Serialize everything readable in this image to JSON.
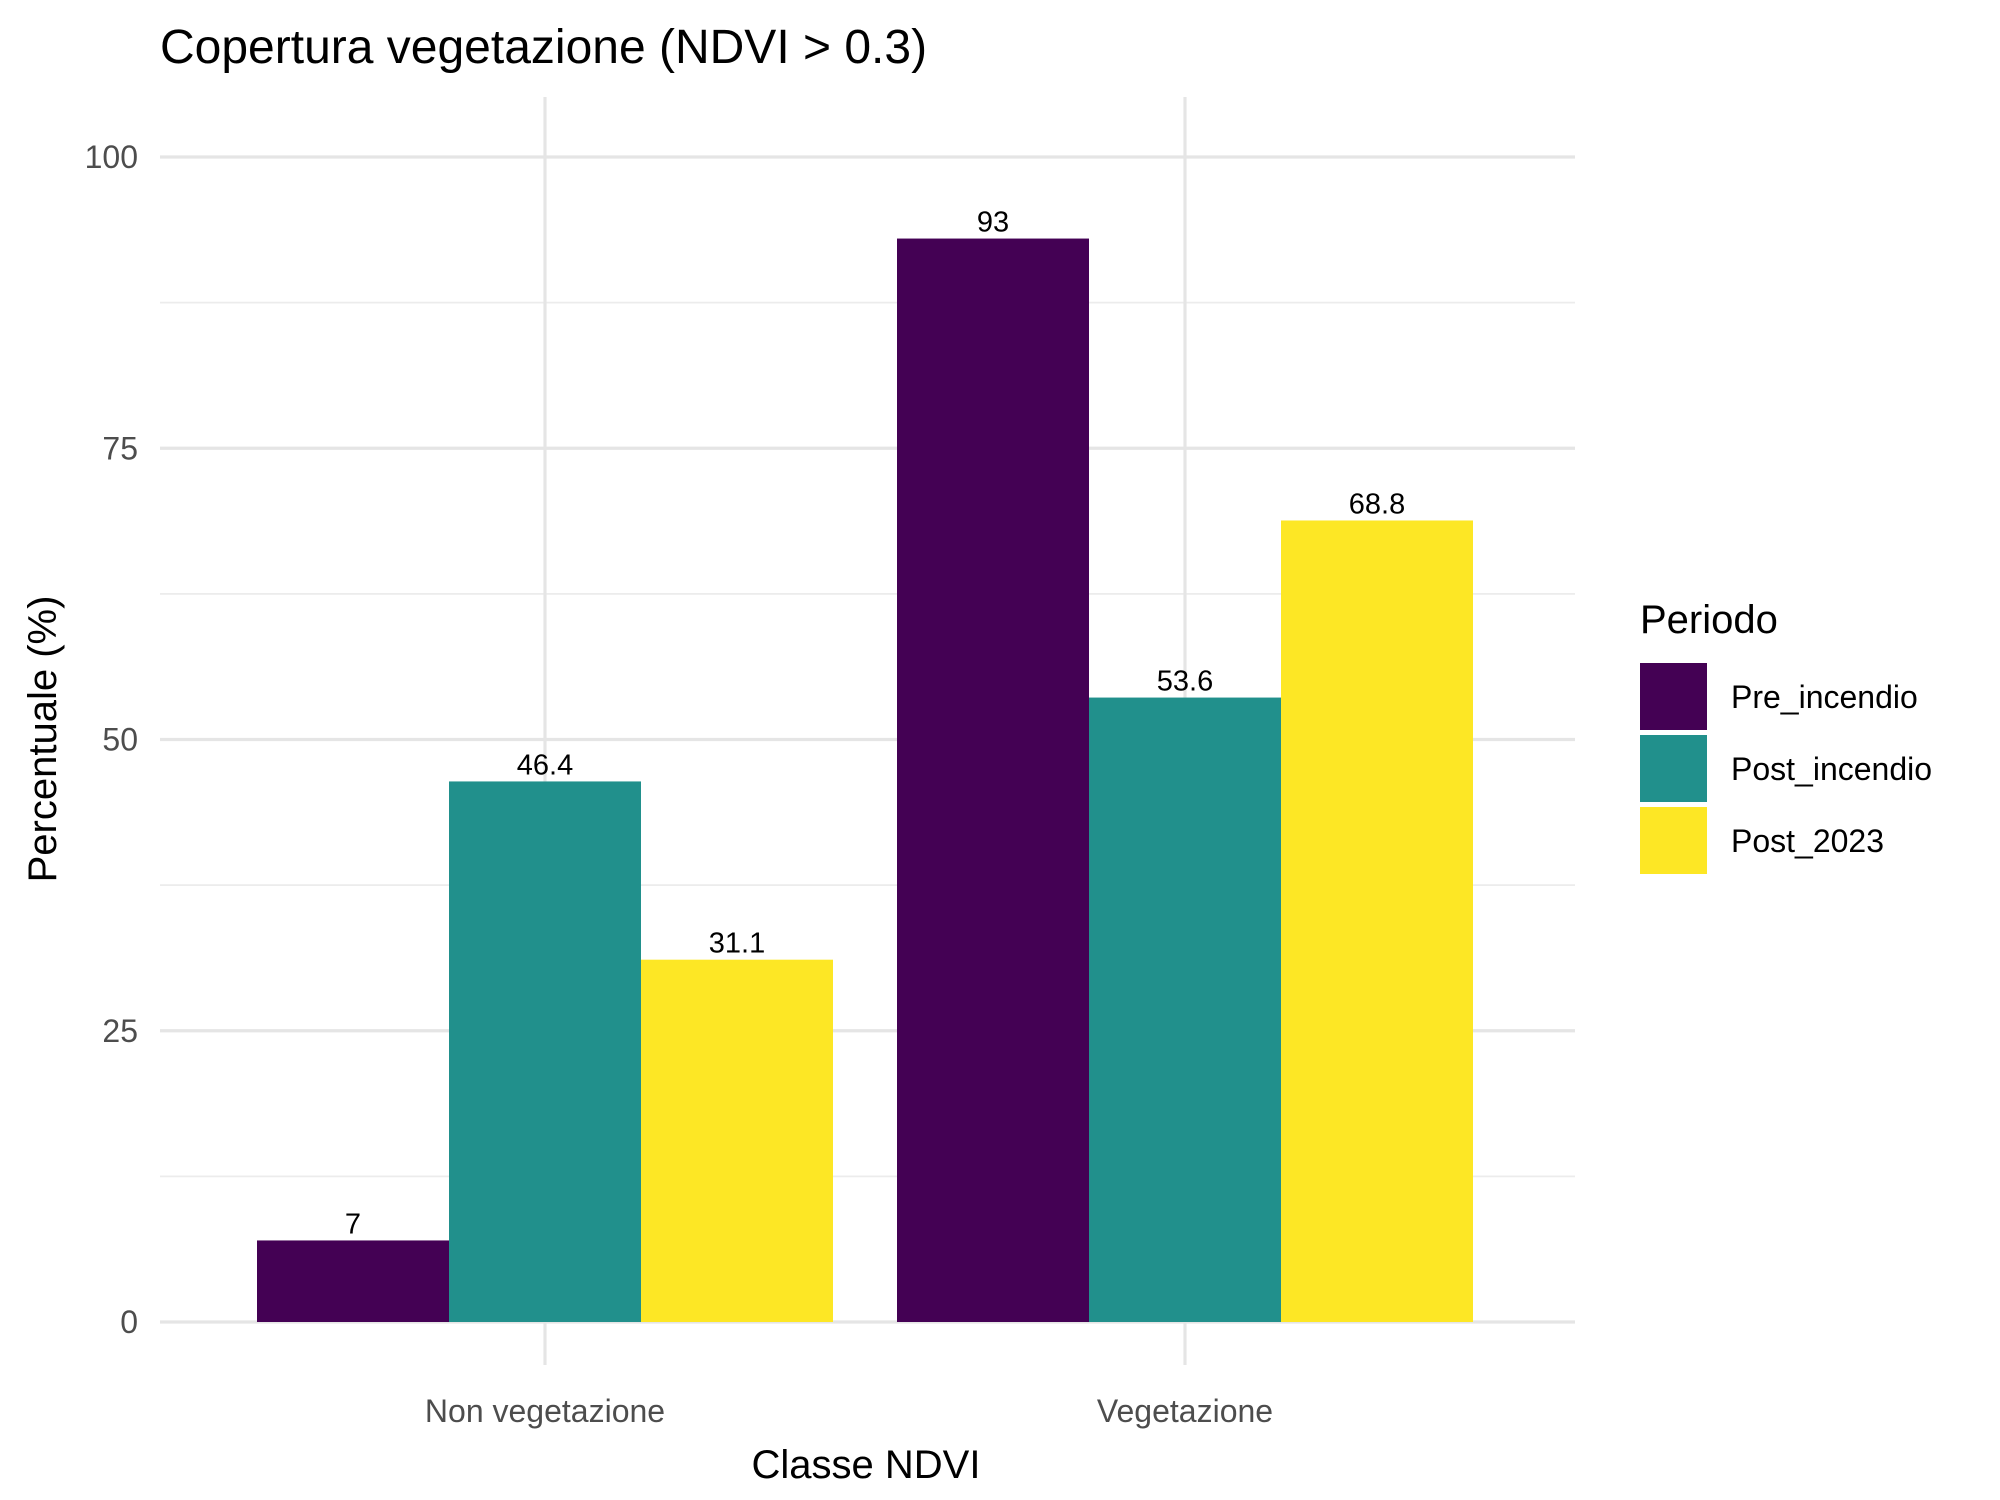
{
  "chart_data": {
    "type": "bar",
    "title": "Copertura vegetazione (NDVI > 0.3)",
    "xlabel": "Classe NDVI",
    "ylabel": "Percentuale (%)",
    "categories": [
      "Non vegetazione",
      "Vegetazione"
    ],
    "series": [
      {
        "name": "Pre_incendio",
        "values": [
          7,
          93
        ],
        "color": "#440154"
      },
      {
        "name": "Post_incendio",
        "values": [
          46.4,
          53.6
        ],
        "color": "#21908C"
      },
      {
        "name": "Post_2023",
        "values": [
          31.1,
          68.8
        ],
        "color": "#FDE725"
      }
    ],
    "data_labels": [
      [
        "7",
        "93"
      ],
      [
        "46.4",
        "53.6"
      ],
      [
        "31.1",
        "68.8"
      ]
    ],
    "ylim": [
      0,
      100
    ],
    "yticks": [
      0,
      25,
      50,
      75,
      100
    ],
    "grid": true,
    "legend": {
      "title": "Periodo",
      "position": "right"
    }
  }
}
